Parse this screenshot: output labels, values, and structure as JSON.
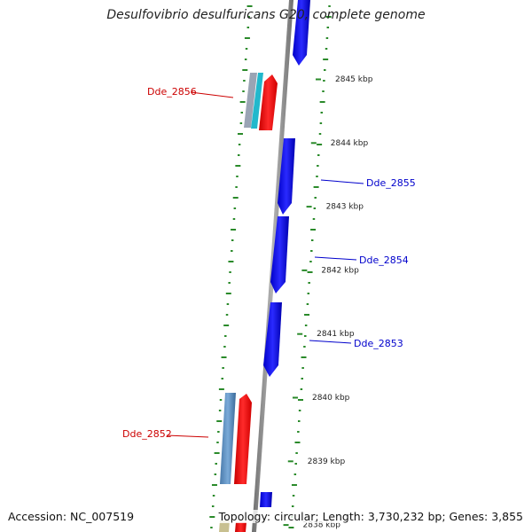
{
  "title": "Desulfovibrio desulfuricans G20, complete genome",
  "footer": {
    "accession": "Accession: NC_007519",
    "summary": "Topology: circular; Length: 3,730,232 bp; Genes: 3,855"
  },
  "colors": {
    "backbone": "#8a8a8a",
    "reverse_strand_gene": "#ff1a1a",
    "forward_strand_gene": "#1a1aff",
    "gc_dots": "#2a8a2a",
    "label_red": "#cc0000",
    "label_blue": "#0000cc"
  },
  "ruler": {
    "unit": "kbp",
    "ticks": [
      {
        "value": 2838,
        "label": "2838 kbp"
      },
      {
        "value": 2839,
        "label": "2839 kbp"
      },
      {
        "value": 2840,
        "label": "2840 kbp"
      },
      {
        "value": 2841,
        "label": "2841 kbp"
      },
      {
        "value": 2842,
        "label": "2842 kbp"
      },
      {
        "value": 2843,
        "label": "2843 kbp"
      },
      {
        "value": 2844,
        "label": "2844 kbp"
      },
      {
        "value": 2845,
        "label": "2845 kbp"
      }
    ]
  },
  "gene_labels": [
    {
      "text": "Dde_2856",
      "strand": "reverse"
    },
    {
      "text": "Dde_2855",
      "strand": "forward"
    },
    {
      "text": "Dde_2854",
      "strand": "forward"
    },
    {
      "text": "Dde_2853",
      "strand": "forward"
    },
    {
      "text": "Dde_2852",
      "strand": "reverse"
    }
  ]
}
